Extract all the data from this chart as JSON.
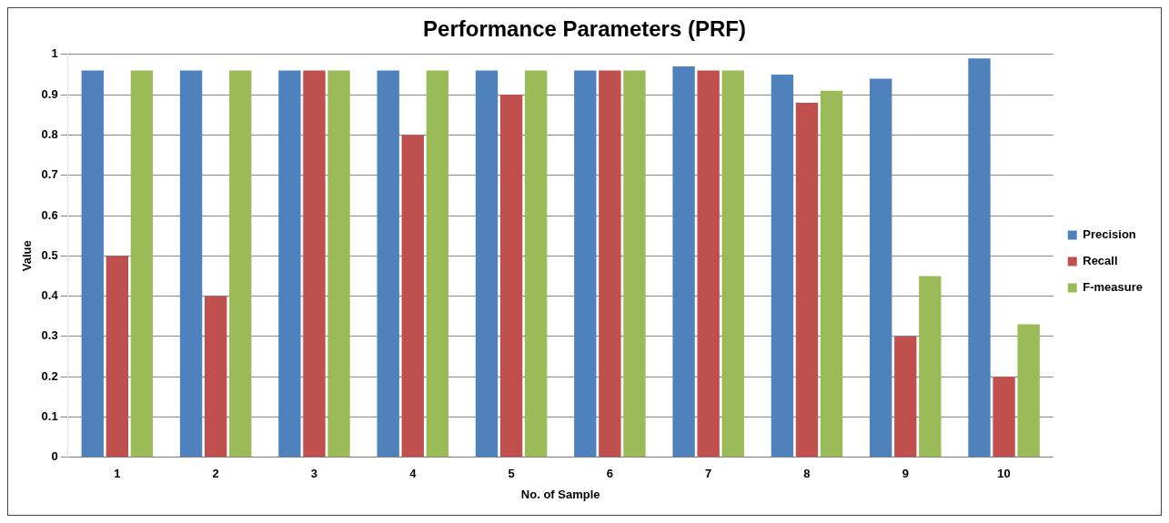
{
  "chart_data": {
    "type": "bar",
    "title": "Performance Parameters (PRF)",
    "xlabel": "No. of Sample",
    "ylabel": "Value",
    "categories": [
      "1",
      "2",
      "3",
      "4",
      "5",
      "6",
      "7",
      "8",
      "9",
      "10"
    ],
    "series": [
      {
        "name": "Precision",
        "color": "#4f81bd",
        "values": [
          0.96,
          0.96,
          0.96,
          0.96,
          0.96,
          0.96,
          0.97,
          0.95,
          0.94,
          0.99
        ]
      },
      {
        "name": "Recall",
        "color": "#c0504d",
        "values": [
          0.5,
          0.4,
          0.96,
          0.8,
          0.9,
          0.96,
          0.96,
          0.88,
          0.3,
          0.2
        ]
      },
      {
        "name": "F-measure",
        "color": "#9bbb59",
        "values": [
          0.96,
          0.96,
          0.96,
          0.96,
          0.96,
          0.96,
          0.96,
          0.91,
          0.45,
          0.33
        ]
      }
    ],
    "ylim": [
      0,
      1
    ],
    "yticks": [
      0,
      0.1,
      0.2,
      0.3,
      0.4,
      0.5,
      0.6,
      0.7,
      0.8,
      0.9,
      1
    ],
    "grid": "y",
    "legend": "right"
  }
}
